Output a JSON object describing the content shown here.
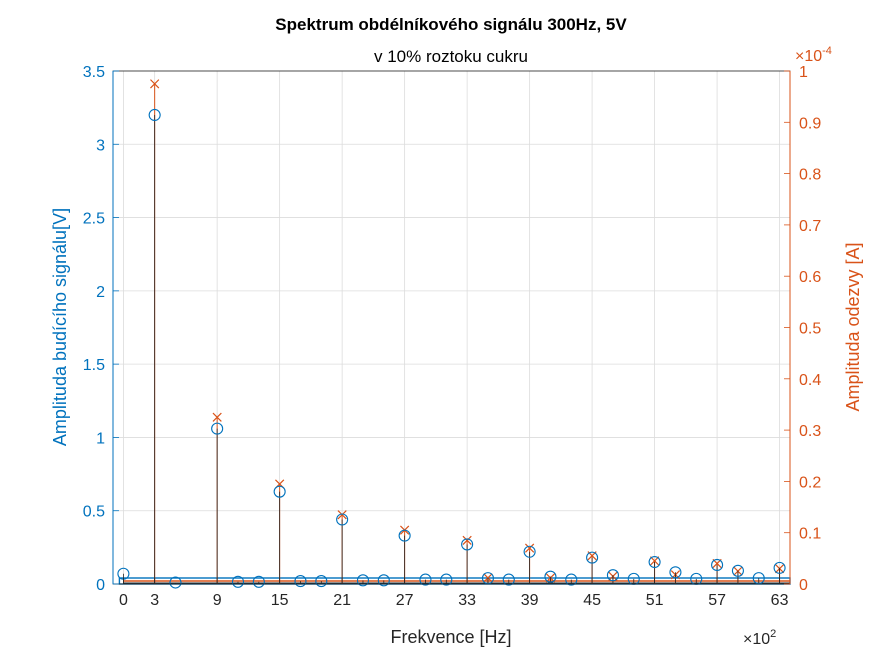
{
  "chart_data": {
    "type": "stem",
    "title": "Spektrum obdélníkového signálu 300Hz, 5V",
    "subtitle": "v 10% roztoku cukru",
    "xlabel": "Frekvence [Hz]",
    "x_exponent_label": "×10",
    "x_exponent_power": "2",
    "xlim": [
      -1,
      64
    ],
    "x_ticks": [
      0,
      3,
      9,
      15,
      21,
      27,
      33,
      39,
      45,
      51,
      57,
      63
    ],
    "ylabel_left": "Amplituda budícího signálu[V]",
    "ylim_left": [
      0,
      3.5
    ],
    "y_ticks_left": [
      "0",
      "0.5",
      "1",
      "1.5",
      "2",
      "2.5",
      "3",
      "3.5"
    ],
    "ylabel_right": "Amplituda odezvy [A]",
    "y_exponent_right_label": "×10",
    "y_exponent_right_power": "-4",
    "ylim_right": [
      0,
      1
    ],
    "y_ticks_right": [
      "0",
      "0.1",
      "0.2",
      "0.3",
      "0.4",
      "0.5",
      "0.6",
      "0.7",
      "0.8",
      "0.9",
      "1"
    ],
    "grid": true,
    "colors": {
      "left": "#0072BD",
      "right": "#D95319"
    },
    "series": [
      {
        "axis": "left",
        "marker": "circle",
        "x": [
          0,
          3,
          9,
          15,
          21,
          27,
          33,
          39,
          45,
          51,
          57,
          63,
          29,
          35,
          41,
          47,
          53,
          59,
          5,
          11,
          13,
          17,
          19,
          23,
          25,
          31,
          37,
          43,
          49,
          55,
          61
        ],
        "values": [
          0.07,
          3.2,
          1.06,
          0.63,
          0.44,
          0.33,
          0.27,
          0.22,
          0.18,
          0.15,
          0.13,
          0.11,
          0.03,
          0.04,
          0.05,
          0.06,
          0.08,
          0.09,
          0.01,
          0.015,
          0.015,
          0.02,
          0.02,
          0.025,
          0.025,
          0.03,
          0.03,
          0.03,
          0.035,
          0.035,
          0.04
        ]
      },
      {
        "axis": "right",
        "marker": "x",
        "x": [
          3,
          9,
          15,
          21,
          27,
          33,
          39,
          45,
          51,
          57,
          63,
          35,
          41,
          47,
          53,
          59
        ],
        "values": [
          0.975,
          0.325,
          0.195,
          0.135,
          0.105,
          0.085,
          0.07,
          0.055,
          0.045,
          0.04,
          0.03,
          0.012,
          0.012,
          0.015,
          0.018,
          0.025
        ]
      }
    ]
  }
}
